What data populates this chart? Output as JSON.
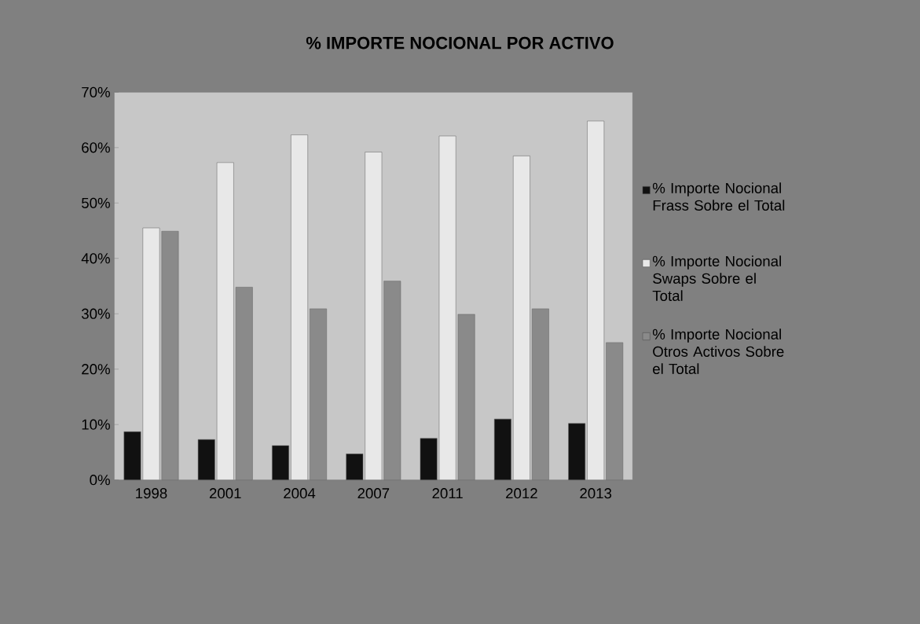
{
  "chart_data": {
    "type": "bar",
    "title": "% IMPORTE NOCIONAL POR ACTIVO",
    "categories": [
      "1998",
      "2001",
      "2004",
      "2007",
      "2011",
      "2012",
      "2013"
    ],
    "series": [
      {
        "name": "% Importe Nocional Frass Sobre el Total",
        "color": "#111111",
        "values": [
          8.7,
          7.3,
          6.2,
          4.7,
          7.5,
          11.0,
          10.2
        ]
      },
      {
        "name": "% Importe Nocional Swaps Sobre el Total",
        "color": "#e8e8e8",
        "values": [
          45.5,
          57.3,
          62.3,
          59.2,
          62.1,
          58.5,
          64.8
        ]
      },
      {
        "name": "% Importe Nocional Otros Activos Sobre el Total",
        "color": "#8a8a8a",
        "values": [
          44.9,
          34.8,
          30.9,
          35.9,
          29.9,
          30.9,
          24.8
        ]
      }
    ],
    "ylim": [
      0,
      70
    ],
    "yticks": [
      {
        "value": 0,
        "label": "0%"
      },
      {
        "value": 10,
        "label": "10%"
      },
      {
        "value": 20,
        "label": "20%"
      },
      {
        "value": 30,
        "label": "30%"
      },
      {
        "value": 40,
        "label": "40%"
      },
      {
        "value": 50,
        "label": "50%"
      },
      {
        "value": 60,
        "label": "60%"
      },
      {
        "value": 70,
        "label": "70%"
      }
    ],
    "grid": false,
    "legend": "right"
  }
}
